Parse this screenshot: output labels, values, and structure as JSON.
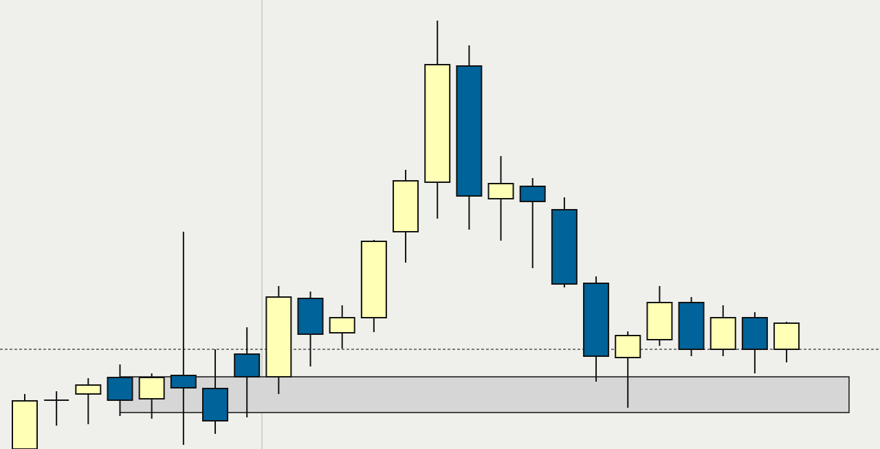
{
  "chart_data": {
    "type": "candlestick",
    "categories": [
      null,
      null,
      null,
      null,
      null,
      null,
      null,
      null,
      null,
      null,
      null,
      null,
      null,
      null,
      null,
      null,
      null,
      null,
      null,
      null,
      null,
      null,
      null,
      null,
      null
    ],
    "open": [
      0,
      71,
      80,
      104,
      73,
      107,
      88,
      138,
      105,
      219,
      169,
      191,
      316,
      388,
      557,
      364,
      382,
      348,
      241,
      133,
      159,
      213,
      145,
      191,
      145
    ],
    "high": [
      80,
      84,
      103,
      123,
      110,
      316,
      145,
      177,
      237,
      229,
      209,
      304,
      406,
      623,
      587,
      426,
      394,
      366,
      251,
      171,
      237,
      221,
      209,
      199,
      185
    ],
    "low": [
      0,
      34,
      36,
      48,
      44,
      6,
      22,
      46,
      80,
      120,
      146,
      170,
      271,
      335,
      319,
      303,
      263,
      235,
      98,
      60,
      150,
      135,
      135,
      110,
      126
    ],
    "close": [
      70,
      71,
      93,
      71,
      104,
      89,
      41,
      105,
      221,
      167,
      191,
      302,
      390,
      559,
      368,
      386,
      360,
      240,
      135,
      165,
      213,
      145,
      191,
      145,
      183
    ],
    "up_color": "#ffffb5",
    "down_color": "#00639a",
    "ylim": [
      0,
      653
    ],
    "price_line": 145,
    "zone": [
      53,
      105
    ],
    "zone_color": "#d6d6d6"
  }
}
